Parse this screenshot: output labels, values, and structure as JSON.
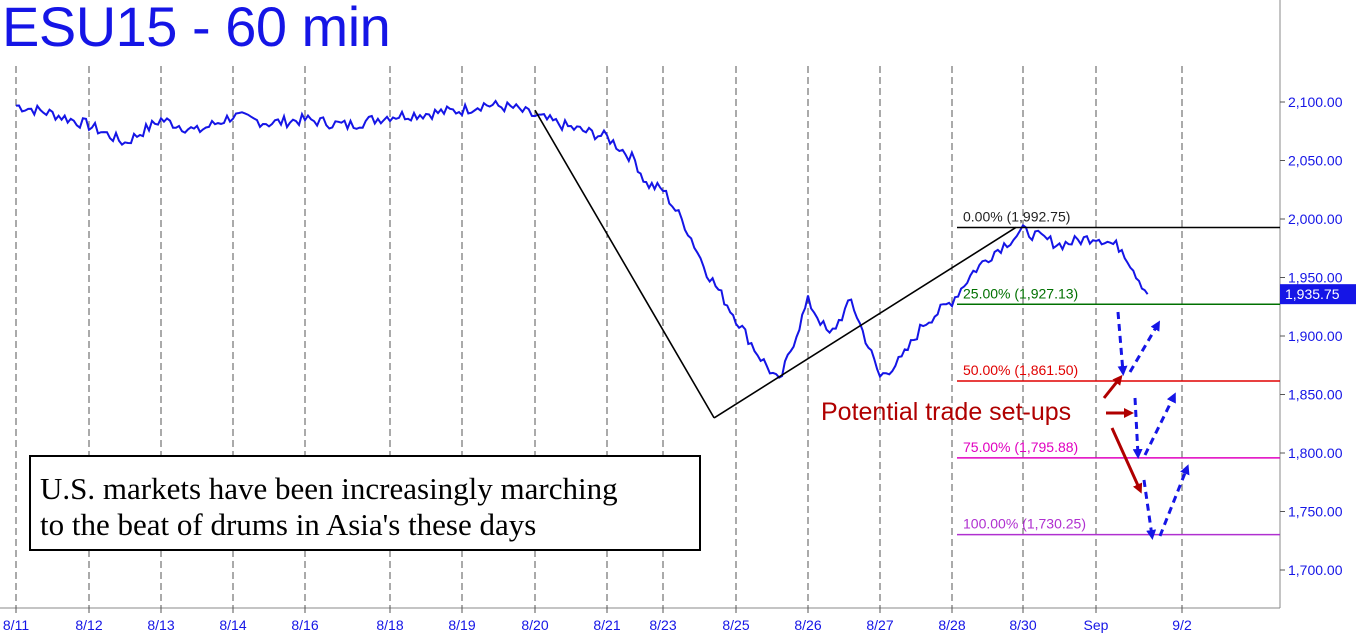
{
  "title": "ESU15 - 60 min",
  "note": {
    "line1": "U.S. markets have been increasingly marching",
    "line2": "to the beat of drums in Asia's these days"
  },
  "setup_label": "Potential trade set-ups",
  "colors": {
    "price": "#1515e6",
    "fib_0": "#000000",
    "fib_25": "#007000",
    "fib_50": "#e00000",
    "fib_75": "#e000c0",
    "fib_100": "#b030d0",
    "arrows_red": "#b00000",
    "arrows_blue": "#1515e6",
    "last_price_bg": "#1515e6"
  },
  "chart_data": {
    "type": "line",
    "title": "ESU15 - 60 min",
    "ylim": [
      1680,
      2130
    ],
    "y_ticks": [
      "2,100.00",
      "2,050.00",
      "2,000.00",
      "1,950.00",
      "1,900.00",
      "1,850.00",
      "1,800.00",
      "1,750.00",
      "1,700.00"
    ],
    "y_tick_values": [
      2100,
      2050,
      2000,
      1950,
      1900,
      1850,
      1800,
      1750,
      1700
    ],
    "x_ticks": [
      "8/11",
      "8/12",
      "8/13",
      "8/14",
      "8/16",
      "8/18",
      "8/19",
      "8/20",
      "8/21",
      "8/23",
      "8/25",
      "8/26",
      "8/27",
      "8/28",
      "8/30",
      "Sep",
      "9/2"
    ],
    "grid": "vertical dashed",
    "last_price": "1,935.75",
    "last_price_value": 1935.75,
    "series": [
      {
        "x": [
          0,
          0.5,
          1,
          1.5,
          2,
          2.5,
          3,
          3.5,
          4,
          4.5,
          5,
          5.5,
          6,
          6.3,
          6.7,
          7,
          7.5,
          8,
          8.5,
          8.7,
          9,
          9.3,
          9.6,
          10,
          10.3,
          10.6,
          11,
          11.3,
          11.6,
          12,
          12.3,
          12.6,
          13,
          13.3,
          13.6,
          14,
          14.5,
          15,
          15.3,
          15.6
        ],
        "values": [
          2097,
          2090,
          2080,
          2065,
          2085,
          2075,
          2088,
          2082,
          2085,
          2080,
          2088,
          2090,
          2093,
          2098,
          2095,
          2088,
          2078,
          2070,
          2050,
          2030,
          2025,
          1995,
          1955,
          1915,
          1885,
          1860,
          1930,
          1900,
          1930,
          1865,
          1880,
          1910,
          1930,
          1955,
          1972,
          1990,
          1978,
          1985,
          1975,
          1935.75
        ]
      }
    ],
    "trendlines": [
      {
        "x": [
          7,
          9.7
        ],
        "values": [
          2093,
          1830
        ]
      },
      {
        "x": [
          9.7,
          13.9
        ],
        "values": [
          1830,
          1992.75
        ]
      }
    ],
    "fibonacci_levels": [
      {
        "label": "0.00% (1,992.75)",
        "value": 1992.75
      },
      {
        "label": "25.00% (1,927.13)",
        "value": 1927.13
      },
      {
        "label": "50.00% (1,861.50)",
        "value": 1861.5
      },
      {
        "label": "75.00% (1,795.88)",
        "value": 1795.88
      },
      {
        "label": "100.00% (1,730.25)",
        "value": 1730.25
      }
    ]
  }
}
